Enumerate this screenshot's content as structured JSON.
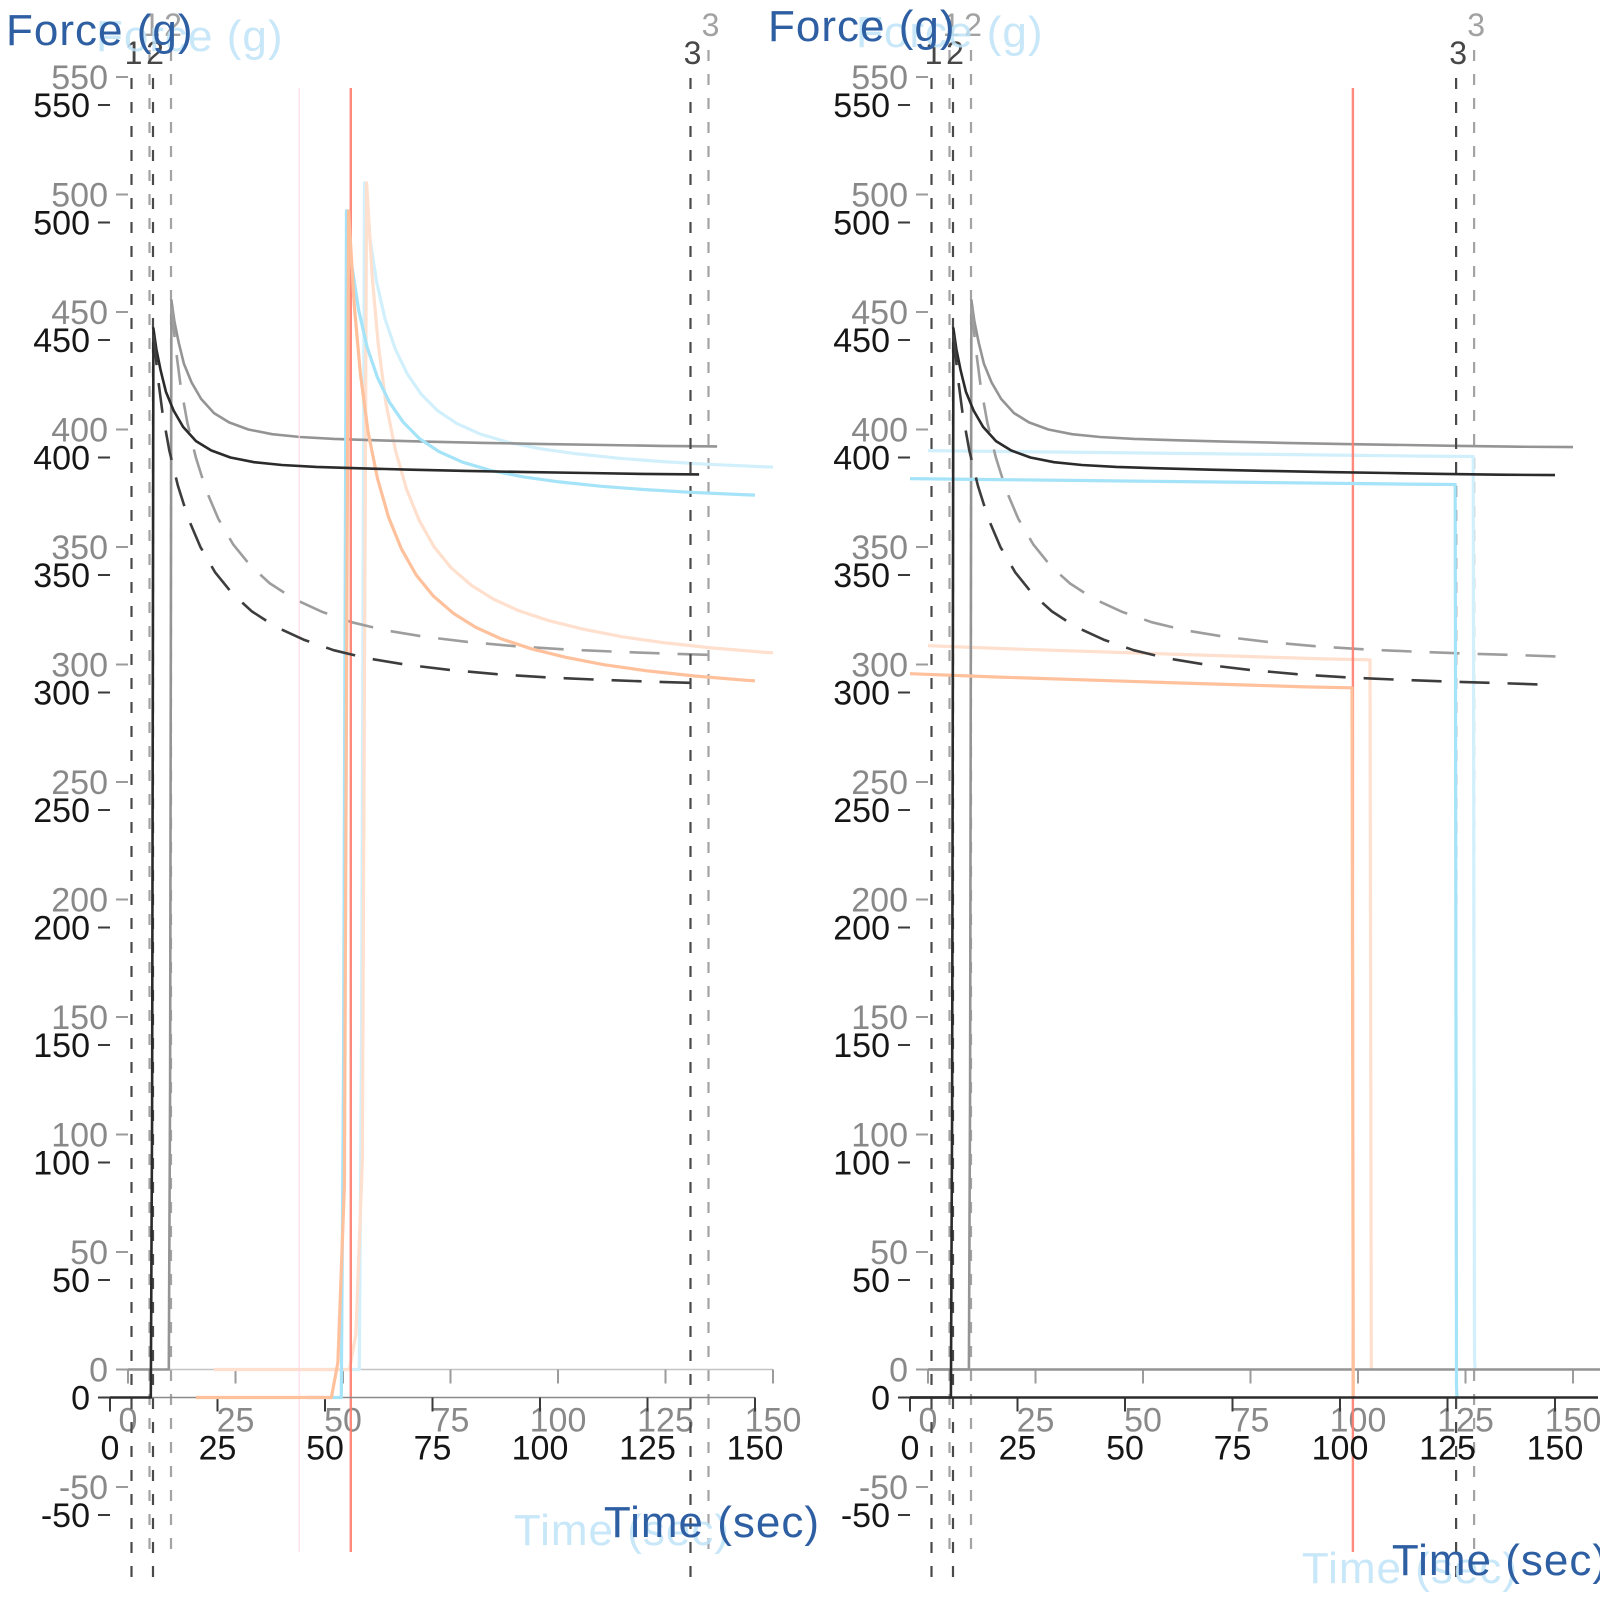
{
  "figure": {
    "background": "#ffffff",
    "colors": {
      "axis_title": "#2e5fa3",
      "axis_title_ghost": "#bfe3f7",
      "tick_label": "#161616",
      "tick_mark": "#3a3a3a",
      "axis_line": "#8a8a8a",
      "event_line": "#4a4a4a",
      "event_label": "#474747"
    }
  },
  "chart_data": [
    {
      "type": "line",
      "panel": "left",
      "title": "",
      "xlabel": "Time (sec)",
      "ylabel": "Force (g)",
      "xlim": [
        0,
        150
      ],
      "ylim": [
        -50,
        550
      ],
      "xticks": [
        0,
        25,
        50,
        75,
        100,
        125,
        150
      ],
      "yticks": [
        -50,
        0,
        50,
        100,
        150,
        200,
        250,
        300,
        350,
        400,
        450,
        500,
        550
      ],
      "grid": false,
      "legend": "none",
      "event_lines": [
        {
          "label": "1",
          "x": 5
        },
        {
          "label": "2",
          "x": 10
        },
        {
          "label": "3",
          "x": 135
        }
      ],
      "marker_lines": [
        {
          "x": 44,
          "color": "#ffd6e8",
          "width": 1.2
        },
        {
          "x": 56,
          "color": "#ff7e6e",
          "width": 2.4
        }
      ],
      "series": [
        {
          "name": "cyan-trace",
          "color": "#a5e3f8",
          "style": "solid",
          "width": 3.2,
          "points": [
            [
              46,
              0
            ],
            [
              53.8,
              0
            ],
            [
              54.3,
              140
            ],
            [
              55,
              505
            ],
            [
              56.2,
              482
            ],
            [
              57.8,
              463
            ],
            [
              59.8,
              447
            ],
            [
              62.2,
              434
            ],
            [
              65,
              423.5
            ],
            [
              68.2,
              415
            ],
            [
              72,
              408
            ],
            [
              76.5,
              402.5
            ],
            [
              82,
              398
            ],
            [
              88.5,
              394.5
            ],
            [
              96,
              391.8
            ],
            [
              104.5,
              389.6
            ],
            [
              114,
              387.8
            ],
            [
              124,
              386.4
            ],
            [
              135,
              385.2
            ],
            [
              147,
              384.2
            ],
            [
              150,
              384
            ]
          ]
        },
        {
          "name": "orange-trace",
          "color": "#ffc09c",
          "style": "solid",
          "width": 3.2,
          "points": [
            [
              20,
              0
            ],
            [
              51.5,
              0
            ],
            [
              53,
              15
            ],
            [
              54.5,
              90
            ],
            [
              55.5,
              505
            ],
            [
              56.8,
              465
            ],
            [
              58.2,
              436
            ],
            [
              60,
              411
            ],
            [
              62.2,
              391
            ],
            [
              64.8,
              374.5
            ],
            [
              67.8,
              361
            ],
            [
              71.2,
              350
            ],
            [
              75.2,
              341
            ],
            [
              79.8,
              333.8
            ],
            [
              85,
              327.8
            ],
            [
              91,
              322.8
            ],
            [
              98,
              318.6
            ],
            [
              106,
              315
            ],
            [
              115,
              311.8
            ],
            [
              125,
              309.2
            ],
            [
              136,
              307
            ],
            [
              148,
              305.2
            ],
            [
              150,
              305
            ]
          ]
        },
        {
          "name": "force-solid",
          "color": "#2b2b2b",
          "style": "solid",
          "width": 2.6,
          "points": [
            [
              0,
              0
            ],
            [
              9.5,
              0
            ],
            [
              9.8,
              120
            ],
            [
              10.1,
              455
            ],
            [
              10.8,
              446
            ],
            [
              11.8,
              437
            ],
            [
              13,
              428
            ],
            [
              14.8,
              420
            ],
            [
              17,
              413
            ],
            [
              20,
              407
            ],
            [
              23.5,
              403
            ],
            [
              28,
              400
            ],
            [
              33.5,
              398
            ],
            [
              40,
              396.8
            ],
            [
              48,
              396
            ],
            [
              58,
              395.4
            ],
            [
              70,
              394.8
            ],
            [
              83,
              394.3
            ],
            [
              97,
              393.8
            ],
            [
              111,
              393.4
            ],
            [
              124,
              393
            ],
            [
              137,
              392.8
            ]
          ]
        },
        {
          "name": "force-dashed",
          "color": "#3d3d3d",
          "style": "dashed",
          "width": 2.6,
          "points": [
            [
              10.2,
              452
            ],
            [
              11,
              436
            ],
            [
              12.2,
              419
            ],
            [
              13.8,
              403
            ],
            [
              15.8,
              388
            ],
            [
              18.2,
              374
            ],
            [
              21,
              362
            ],
            [
              24.5,
              351
            ],
            [
              28.5,
              342
            ],
            [
              33,
              334.5
            ],
            [
              38.5,
              328
            ],
            [
              45,
              322.5
            ],
            [
              52,
              318
            ],
            [
              60,
              314.5
            ],
            [
              69,
              311.8
            ],
            [
              79,
              309.6
            ],
            [
              90,
              307.8
            ],
            [
              102,
              306.4
            ],
            [
              114,
              305.4
            ],
            [
              126,
              304.6
            ],
            [
              137,
              304
            ]
          ]
        }
      ]
    },
    {
      "type": "line",
      "panel": "right",
      "title": "",
      "xlabel": "Time (sec)",
      "ylabel": "Force (g)",
      "xlim": [
        0,
        150
      ],
      "ylim": [
        -50,
        550
      ],
      "xticks": [
        0,
        25,
        50,
        75,
        100,
        125,
        150
      ],
      "yticks": [
        -50,
        0,
        50,
        100,
        150,
        200,
        250,
        300,
        350,
        400,
        450,
        500,
        550
      ],
      "grid": false,
      "legend": "none",
      "event_lines": [
        {
          "label": "1",
          "x": 5
        },
        {
          "label": "2",
          "x": 10
        },
        {
          "label": "3",
          "x": 127
        }
      ],
      "marker_lines": [
        {
          "x": 103,
          "color": "#ff7e6e",
          "width": 2.4
        }
      ],
      "series": [
        {
          "name": "cyan-trace",
          "color": "#a5e3f8",
          "style": "solid",
          "width": 3.2,
          "points": [
            [
              0,
              391
            ],
            [
              20,
              390.6
            ],
            [
              40,
              390.2
            ],
            [
              60,
              389.8
            ],
            [
              80,
              389.4
            ],
            [
              100,
              389
            ],
            [
              115,
              388.7
            ],
            [
              126.8,
              388.5
            ],
            [
              127.1,
              5
            ],
            [
              127.2,
              0
            ]
          ]
        },
        {
          "name": "orange-trace",
          "color": "#ffc09c",
          "style": "solid",
          "width": 3.2,
          "points": [
            [
              0,
              308
            ],
            [
              20,
              306.6
            ],
            [
              40,
              305.4
            ],
            [
              60,
              304.2
            ],
            [
              78,
              303.2
            ],
            [
              92,
              302.4
            ],
            [
              102.8,
              302
            ],
            [
              103.1,
              0
            ]
          ]
        },
        {
          "name": "zero-baseline",
          "color": "#2b2b2b",
          "style": "solid",
          "width": 2.4,
          "points": [
            [
              0,
              0
            ],
            [
              160,
              0
            ]
          ]
        },
        {
          "name": "force-solid",
          "color": "#2b2b2b",
          "style": "solid",
          "width": 2.6,
          "points": [
            [
              0,
              0
            ],
            [
              9.5,
              0
            ],
            [
              9.8,
              120
            ],
            [
              10.1,
              455
            ],
            [
              10.8,
              446
            ],
            [
              11.8,
              437
            ],
            [
              13,
              428
            ],
            [
              14.8,
              420
            ],
            [
              17,
              413
            ],
            [
              20,
              407
            ],
            [
              23.5,
              403
            ],
            [
              28,
              400
            ],
            [
              33.5,
              398
            ],
            [
              40,
              396.8
            ],
            [
              48,
              396
            ],
            [
              58,
              395.4
            ],
            [
              70,
              394.8
            ],
            [
              83,
              394.3
            ],
            [
              97,
              393.8
            ],
            [
              111,
              393.4
            ],
            [
              124,
              393
            ],
            [
              137,
              392.7
            ],
            [
              150,
              392.5
            ]
          ]
        },
        {
          "name": "force-dashed",
          "color": "#3d3d3d",
          "style": "dashed",
          "width": 2.6,
          "points": [
            [
              10.2,
              452
            ],
            [
              11,
              436
            ],
            [
              12.2,
              419
            ],
            [
              13.8,
              403
            ],
            [
              15.8,
              388
            ],
            [
              18.2,
              374
            ],
            [
              21,
              362
            ],
            [
              24.5,
              351
            ],
            [
              28.5,
              342
            ],
            [
              33,
              334.5
            ],
            [
              38.5,
              328
            ],
            [
              45,
              322.5
            ],
            [
              52,
              318
            ],
            [
              60,
              314.5
            ],
            [
              69,
              311.8
            ],
            [
              79,
              309.6
            ],
            [
              90,
              307.8
            ],
            [
              102,
              306.4
            ],
            [
              114,
              305.4
            ],
            [
              126,
              304.6
            ],
            [
              137,
              304
            ],
            [
              150,
              303.2
            ]
          ]
        }
      ]
    }
  ]
}
